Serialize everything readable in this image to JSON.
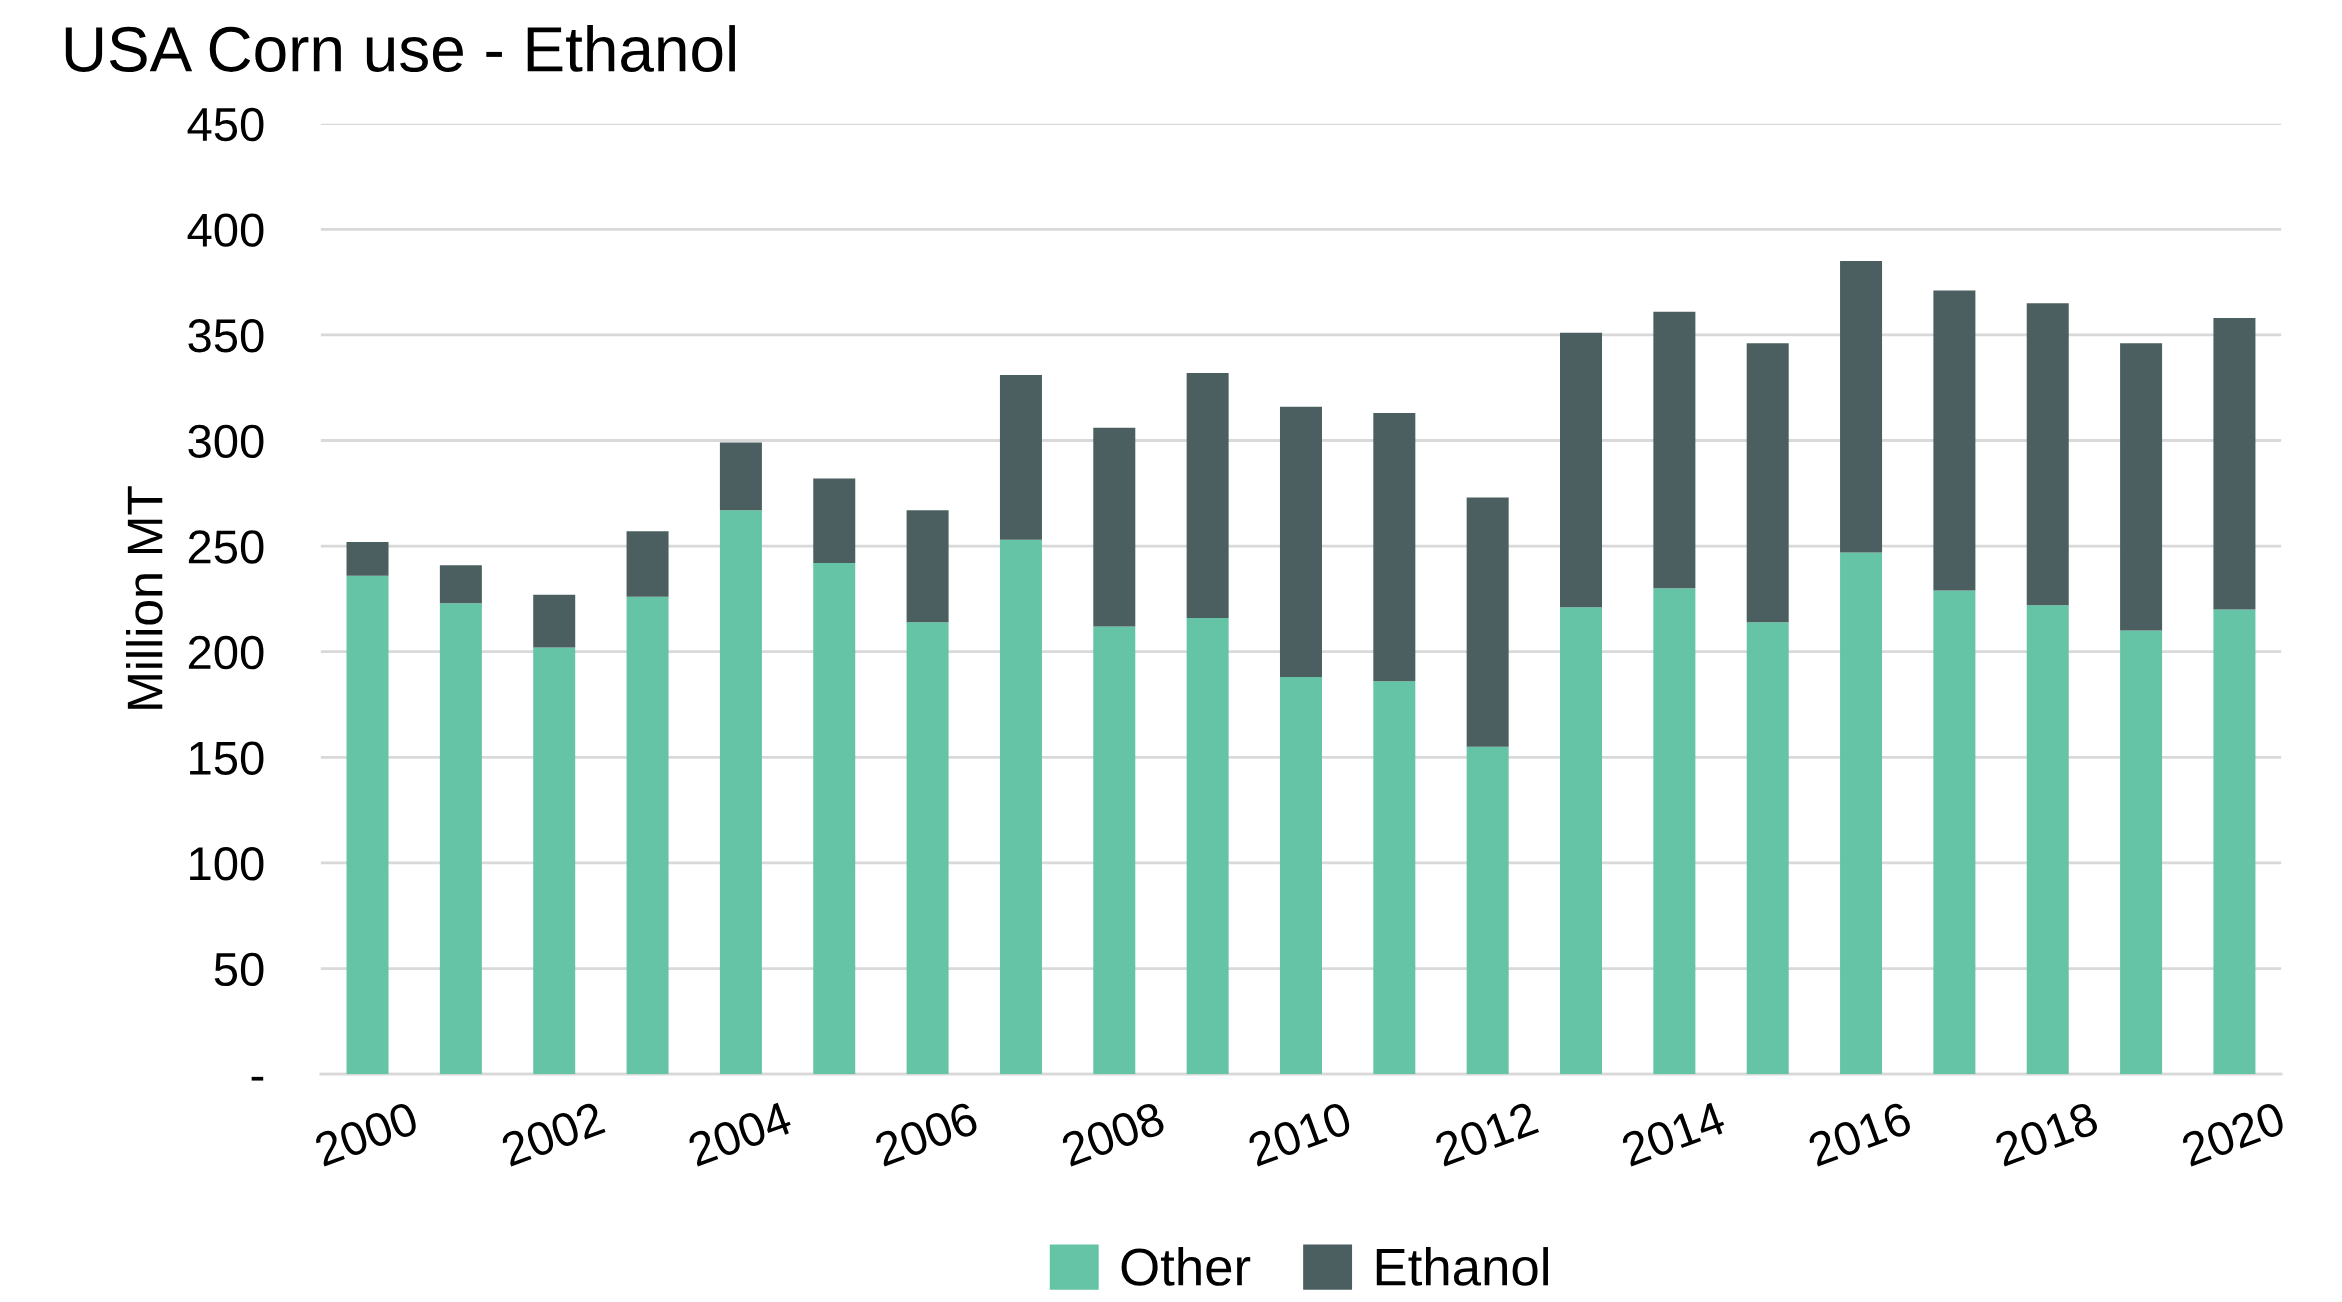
{
  "chart_data": {
    "type": "bar",
    "title": "USA Corn use - Ethanol",
    "ylabel": "Million MT",
    "stacked": true,
    "categories": [
      "2000",
      null,
      "2002",
      null,
      "2004",
      null,
      "2006",
      null,
      "2008",
      null,
      "2010",
      null,
      "2012",
      null,
      "2014",
      null,
      "2016",
      null,
      "2018",
      null,
      "2020"
    ],
    "series": [
      {
        "name": "Other",
        "color": "#64c4a5",
        "values": [
          236,
          223,
          202,
          226,
          267,
          242,
          214,
          253,
          212,
          216,
          188,
          186,
          155,
          221,
          230,
          214,
          247,
          229,
          222,
          210,
          220
        ]
      },
      {
        "name": "Ethanol",
        "color": "#4b5f60",
        "values": [
          16,
          18,
          25,
          31,
          32,
          40,
          53,
          78,
          94,
          116,
          128,
          127,
          118,
          130,
          131,
          132,
          138,
          142,
          143,
          136,
          138
        ]
      }
    ],
    "ylim": [
      0,
      450
    ],
    "yticks": [
      {
        "value": 0,
        "label": "-"
      },
      50,
      100,
      150,
      200,
      250,
      300,
      350,
      400,
      450
    ],
    "grid": "y",
    "legend": "bottom"
  }
}
